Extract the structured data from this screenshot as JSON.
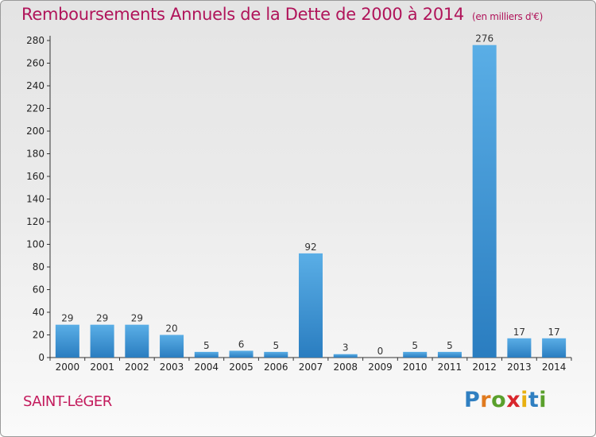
{
  "title": "Remboursements Annuels de la Dette de 2000 à 2014",
  "unit_note": "(en milliers d'€)",
  "commune": "SAINT-LéGER",
  "brand": {
    "letters": [
      "P",
      "r",
      "o",
      "x",
      "i",
      "t",
      "i"
    ],
    "colors": [
      "#2f7fc1",
      "#e07a1f",
      "#5aa02c",
      "#d8262c",
      "#e8b010",
      "#2f7fc1",
      "#5aa02c"
    ]
  },
  "colors": {
    "bar_top": "#5aaee6",
    "bar_bottom": "#2a7dc0",
    "axis": "#333333",
    "grid": "#cfcfcf"
  },
  "chart_data": {
    "type": "bar",
    "title": "Remboursements Annuels de la Dette de 2000 à 2014",
    "xlabel": "",
    "ylabel": "",
    "categories": [
      "2000",
      "2001",
      "2002",
      "2003",
      "2004",
      "2005",
      "2006",
      "2007",
      "2008",
      "2009",
      "2010",
      "2011",
      "2012",
      "2013",
      "2014"
    ],
    "values": [
      29,
      29,
      29,
      20,
      5,
      6,
      5,
      92,
      3,
      0,
      5,
      5,
      276,
      17,
      17
    ],
    "ylim": [
      0,
      280
    ],
    "yticks": [
      0,
      20,
      40,
      60,
      80,
      100,
      120,
      140,
      160,
      180,
      200,
      220,
      240,
      260,
      280
    ],
    "grid": false,
    "legend": "none"
  }
}
